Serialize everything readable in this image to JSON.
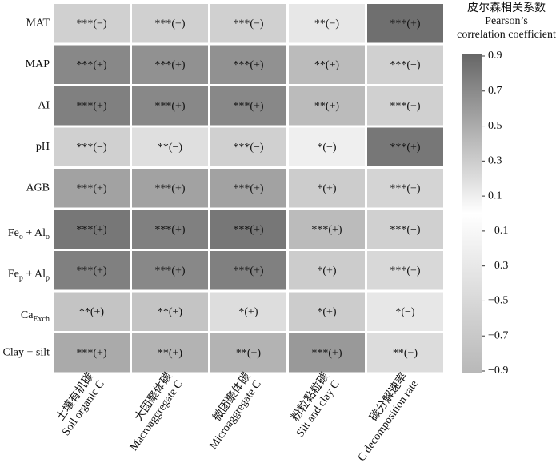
{
  "chart_data": {
    "type": "heatmap",
    "y_categories": [
      "MAT",
      "MAP",
      "AI",
      "pH",
      "AGB",
      [
        [
          "Fe",
          "o"
        ],
        [
          " + Al",
          "o"
        ]
      ],
      [
        [
          "Fe",
          "p"
        ],
        [
          " + Al",
          "p"
        ]
      ],
      [
        [
          "Ca",
          "Exch"
        ]
      ],
      "Clay + silt"
    ],
    "x_categories": [
      {
        "zh": "土壤有机碳",
        "en": "Soil organic C"
      },
      {
        "zh": "大团聚体碳",
        "en": "Macroaggregate C"
      },
      {
        "zh": "微团聚体碳",
        "en": "Microaggregate C"
      },
      {
        "zh": "粉粒黏粒碳",
        "en": "Silt and clay C"
      },
      {
        "zh": "碳分解速率",
        "en": "C decomposition rate"
      }
    ],
    "values": [
      [
        -0.6,
        -0.6,
        -0.6,
        -0.3,
        0.85
      ],
      [
        0.7,
        0.65,
        0.65,
        0.4,
        -0.6
      ],
      [
        0.75,
        0.7,
        0.7,
        0.4,
        -0.6
      ],
      [
        -0.6,
        -0.4,
        -0.6,
        -0.2,
        0.8
      ],
      [
        0.55,
        0.55,
        0.55,
        0.3,
        -0.55
      ],
      [
        0.8,
        0.75,
        0.8,
        0.4,
        -0.6
      ],
      [
        0.75,
        0.7,
        0.75,
        0.3,
        -0.5
      ],
      [
        0.35,
        0.35,
        0.2,
        0.3,
        -0.3
      ],
      [
        0.5,
        0.45,
        0.45,
        0.6,
        -0.45
      ]
    ],
    "value_labels": [
      [
        "***(−)",
        "***(−)",
        "***(−)",
        "**(−)",
        "***(+)"
      ],
      [
        "***(+)",
        "***(+)",
        "***(+)",
        "**(+)",
        "***(−)"
      ],
      [
        "***(+)",
        "***(+)",
        "***(+)",
        "**(+)",
        "***(−)"
      ],
      [
        "***(−)",
        "**(−)",
        "***(−)",
        "*(−)",
        "***(+)"
      ],
      [
        "***(+)",
        "***(+)",
        "***(+)",
        "*(+)",
        "***(−)"
      ],
      [
        "***(+)",
        "***(+)",
        "***(+)",
        "***(+)",
        "***(−)"
      ],
      [
        "***(+)",
        "***(+)",
        "***(+)",
        "*(+)",
        "***(−)"
      ],
      [
        "**(+)",
        "**(+)",
        "*(+)",
        "*(+)",
        "*(−)"
      ],
      [
        "***(+)",
        "**(+)",
        "**(+)",
        "***(+)",
        "**(−)"
      ]
    ],
    "colorbar_title": [
      "皮尔森相关系数",
      "Pearson’s",
      "correlation coefficient"
    ],
    "clim": [
      -0.9,
      0.9
    ],
    "cticks": [
      0.9,
      0.7,
      0.5,
      0.3,
      0.1,
      {
        "value": -0.1,
        "label": "−0.1"
      },
      {
        "value": -0.3,
        "label": "−0.3"
      },
      {
        "value": -0.5,
        "label": "−0.5"
      },
      {
        "value": -0.7,
        "label": "−0.7"
      },
      {
        "value": -0.9,
        "label": "−0.9"
      }
    ],
    "color_high": "#666666",
    "color_zero": "#ffffff",
    "color_low": "#b8b8b8"
  }
}
